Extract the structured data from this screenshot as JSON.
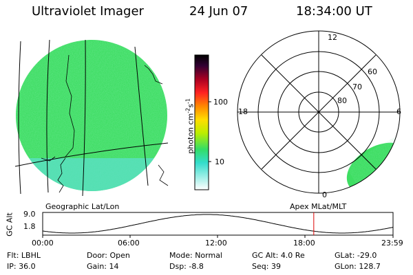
{
  "header": {
    "title": "Ultraviolet Imager",
    "date": "24 Jun 07",
    "time": "18:34:00 UT"
  },
  "colorbar": {
    "unit": "photon cm",
    "unit_exp1": "-2",
    "unit_mid": "s",
    "unit_exp2": "-1",
    "ticks": [
      "100",
      "10"
    ]
  },
  "geo_panel": {
    "label": "Geographic Lat/Lon"
  },
  "polar_panel": {
    "label": "Apex MLat/MLT",
    "mlt_labels": {
      "top": "12",
      "right": "6",
      "bottom": "0",
      "left": "18"
    },
    "lat_labels": [
      "60",
      "70",
      "80"
    ]
  },
  "orbit_plot": {
    "ylabel": "GC Alt",
    "yticks": [
      "9.0",
      "1.8"
    ],
    "xticks": [
      "00:00",
      "06:00",
      "12:00",
      "18:00",
      "23:59"
    ],
    "marker_hours": 18.57
  },
  "info_rows": [
    [
      {
        "label": "Flt:",
        "value": "LBHL"
      },
      {
        "label": "Door:",
        "value": "Open"
      },
      {
        "label": "Mode:",
        "value": "Normal"
      },
      {
        "label": "GC Alt:",
        "value": "4.0 Re"
      },
      {
        "label": "GLat:",
        "value": "-29.0"
      }
    ],
    [
      {
        "label": "IP:",
        "value": "36.0"
      },
      {
        "label": "Gain:",
        "value": "14"
      },
      {
        "label": "Dsp:",
        "value": "-8.8"
      },
      {
        "label": "Seq:",
        "value": "39"
      },
      {
        "label": "GLon:",
        "value": "128.7"
      }
    ]
  ],
  "colors": {
    "aurora_green": "#33dd66",
    "aurora_yellow": "#ccee22",
    "aurora_cyan": "#44ddcc",
    "marker_red": "#dd0000"
  }
}
